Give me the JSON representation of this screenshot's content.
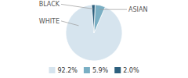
{
  "chart_data": {
    "type": "pie",
    "categories": [
      "WHITE",
      "ASIAN",
      "BLACK"
    ],
    "values": [
      92.2,
      5.9,
      2.0
    ],
    "value_labels": [
      "92.2%",
      "5.9%",
      "2.0%"
    ],
    "colors": [
      "#d6e4ee",
      "#7aafc4",
      "#2e607e"
    ],
    "legend": "bottom"
  }
}
